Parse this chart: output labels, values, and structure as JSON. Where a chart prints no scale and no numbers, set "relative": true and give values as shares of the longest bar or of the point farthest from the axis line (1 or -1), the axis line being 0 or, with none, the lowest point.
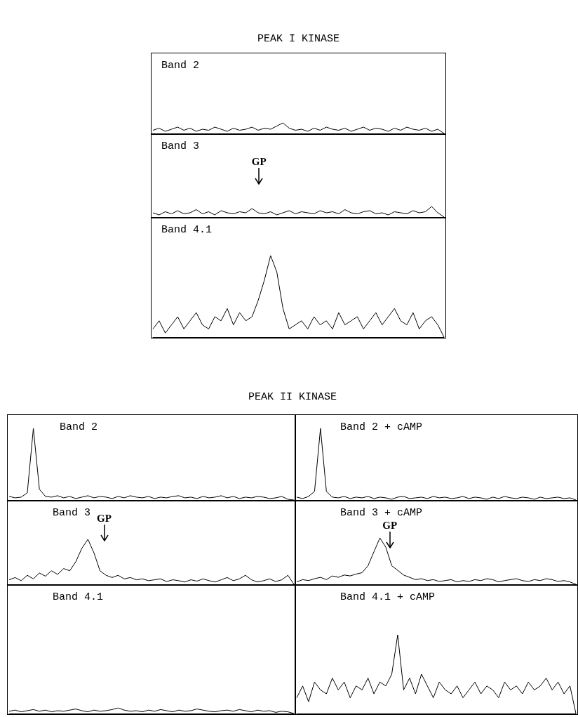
{
  "chart_data": [
    {
      "type": "other",
      "title": "PEAK I KINASE"
    },
    {
      "type": "line",
      "title": "Band 2",
      "relative": true,
      "marker": "none",
      "color": "#000000",
      "categories": [
        null,
        null,
        null,
        null,
        null,
        null,
        null,
        null,
        null,
        null,
        null,
        null,
        null,
        null,
        null,
        null,
        null,
        null,
        null,
        null,
        null,
        null,
        null,
        null,
        null,
        null,
        null,
        null,
        null,
        null,
        null,
        null,
        null,
        null,
        null,
        null,
        null,
        null,
        null,
        null,
        null,
        null,
        null,
        null,
        null,
        null,
        null,
        null
      ],
      "values": [
        0.3,
        0.5,
        0.2,
        0.4,
        0.6,
        0.3,
        0.5,
        0.2,
        0.4,
        0.3,
        0.6,
        0.4,
        0.2,
        0.5,
        0.3,
        0.4,
        0.6,
        0.3,
        0.5,
        0.4,
        0.7,
        1,
        0.5,
        0.3,
        0.4,
        0.2,
        0.5,
        0.3,
        0.6,
        0.4,
        0.3,
        0.5,
        0.2,
        0.4,
        0.6,
        0.3,
        0.5,
        0.4,
        0.2,
        0.5,
        0.3,
        0.6,
        0.4,
        0.3,
        0.5,
        0.2,
        0.4,
        0
      ]
    },
    {
      "type": "line",
      "title": "Band 3",
      "annotations": [
        "GP"
      ],
      "relative": true,
      "marker": "none",
      "color": "#000000",
      "categories": [
        null,
        null,
        null,
        null,
        null,
        null,
        null,
        null,
        null,
        null,
        null,
        null,
        null,
        null,
        null,
        null,
        null,
        null,
        null,
        null,
        null,
        null,
        null,
        null,
        null,
        null,
        null,
        null,
        null,
        null,
        null,
        null,
        null,
        null,
        null,
        null,
        null,
        null,
        null,
        null,
        null,
        null,
        null,
        null,
        null,
        null,
        null,
        null
      ],
      "values": [
        0.4,
        0.2,
        0.5,
        0.3,
        0.6,
        0.3,
        0.4,
        0.7,
        0.3,
        0.5,
        0.2,
        0.6,
        0.4,
        0.3,
        0.5,
        0.4,
        0.8,
        0.4,
        0.3,
        0.5,
        0.2,
        0.4,
        0.6,
        0.3,
        0.5,
        0.4,
        0.3,
        0.6,
        0.4,
        0.5,
        0.3,
        0.7,
        0.4,
        0.3,
        0.5,
        0.6,
        0.3,
        0.4,
        0.2,
        0.5,
        0.4,
        0.3,
        0.6,
        0.4,
        0.5,
        1,
        0.4,
        0
      ]
    },
    {
      "type": "line",
      "title": "Band 4.1",
      "relative": true,
      "marker": "none",
      "color": "#000000",
      "categories": [
        null,
        null,
        null,
        null,
        null,
        null,
        null,
        null,
        null,
        null,
        null,
        null,
        null,
        null,
        null,
        null,
        null,
        null,
        null,
        null,
        null,
        null,
        null,
        null,
        null,
        null,
        null,
        null,
        null,
        null,
        null,
        null,
        null,
        null,
        null,
        null,
        null,
        null,
        null,
        null,
        null,
        null,
        null,
        null,
        null,
        null,
        null,
        null
      ],
      "values": [
        0.1,
        0.2,
        0.05,
        0.15,
        0.25,
        0.1,
        0.2,
        0.3,
        0.15,
        0.1,
        0.25,
        0.2,
        0.35,
        0.15,
        0.3,
        0.2,
        0.25,
        0.45,
        0.7,
        1,
        0.8,
        0.35,
        0.1,
        0.15,
        0.2,
        0.1,
        0.25,
        0.15,
        0.2,
        0.1,
        0.3,
        0.15,
        0.2,
        0.25,
        0.1,
        0.2,
        0.3,
        0.15,
        0.25,
        0.35,
        0.2,
        0.15,
        0.3,
        0.1,
        0.2,
        0.25,
        0.15,
        0
      ]
    },
    {
      "type": "other",
      "title": "PEAK II KINASE"
    },
    {
      "type": "line",
      "title": "Band 2",
      "relative": true,
      "marker": "none",
      "color": "#000000",
      "categories": [
        null,
        null,
        null,
        null,
        null,
        null,
        null,
        null,
        null,
        null,
        null,
        null,
        null,
        null,
        null,
        null,
        null,
        null,
        null,
        null,
        null,
        null,
        null,
        null,
        null,
        null,
        null,
        null,
        null,
        null,
        null,
        null,
        null,
        null,
        null,
        null,
        null,
        null,
        null,
        null,
        null,
        null,
        null,
        null,
        null,
        null,
        null,
        null
      ],
      "values": [
        0.05,
        0.03,
        0.04,
        0.1,
        1,
        0.15,
        0.05,
        0.04,
        0.06,
        0.03,
        0.05,
        0.02,
        0.04,
        0.06,
        0.03,
        0.05,
        0.04,
        0.02,
        0.05,
        0.03,
        0.06,
        0.04,
        0.03,
        0.05,
        0.02,
        0.04,
        0.03,
        0.05,
        0.06,
        0.03,
        0.04,
        0.02,
        0.05,
        0.03,
        0.04,
        0.06,
        0.03,
        0.05,
        0.02,
        0.04,
        0.03,
        0.05,
        0.04,
        0.02,
        0.03,
        0.05,
        0.01,
        0
      ]
    },
    {
      "type": "line",
      "title": "Band 2 + cAMP",
      "relative": true,
      "marker": "none",
      "color": "#000000",
      "categories": [
        null,
        null,
        null,
        null,
        null,
        null,
        null,
        null,
        null,
        null,
        null,
        null,
        null,
        null,
        null,
        null,
        null,
        null,
        null,
        null,
        null,
        null,
        null,
        null,
        null,
        null,
        null,
        null,
        null,
        null,
        null,
        null,
        null,
        null,
        null,
        null,
        null,
        null,
        null,
        null,
        null,
        null,
        null,
        null,
        null,
        null,
        null,
        null
      ],
      "values": [
        0.04,
        0.02,
        0.05,
        0.12,
        1,
        0.12,
        0.04,
        0.03,
        0.05,
        0.02,
        0.04,
        0.03,
        0.05,
        0.02,
        0.04,
        0.03,
        0.01,
        0.04,
        0.05,
        0.02,
        0.03,
        0.04,
        0.02,
        0.05,
        0.03,
        0.04,
        0.02,
        0.03,
        0.05,
        0.02,
        0.04,
        0.03,
        0.01,
        0.04,
        0.02,
        0.05,
        0.03,
        0.02,
        0.04,
        0.03,
        0.01,
        0.04,
        0.02,
        0.03,
        0.04,
        0.02,
        0.03,
        0
      ]
    },
    {
      "type": "line",
      "title": "Band 3",
      "annotations": [
        "GP"
      ],
      "relative": true,
      "marker": "none",
      "color": "#000000",
      "categories": [
        null,
        null,
        null,
        null,
        null,
        null,
        null,
        null,
        null,
        null,
        null,
        null,
        null,
        null,
        null,
        null,
        null,
        null,
        null,
        null,
        null,
        null,
        null,
        null,
        null,
        null,
        null,
        null,
        null,
        null,
        null,
        null,
        null,
        null,
        null,
        null,
        null,
        null,
        null,
        null,
        null,
        null,
        null,
        null,
        null,
        null,
        null,
        null
      ],
      "values": [
        0.1,
        0.15,
        0.08,
        0.2,
        0.12,
        0.25,
        0.18,
        0.3,
        0.22,
        0.35,
        0.3,
        0.5,
        0.8,
        1,
        0.7,
        0.3,
        0.2,
        0.15,
        0.2,
        0.12,
        0.15,
        0.1,
        0.12,
        0.08,
        0.1,
        0.12,
        0.06,
        0.1,
        0.08,
        0.05,
        0.1,
        0.07,
        0.12,
        0.08,
        0.05,
        0.1,
        0.15,
        0.08,
        0.12,
        0.2,
        0.1,
        0.05,
        0.08,
        0.12,
        0.06,
        0.1,
        0.2,
        0
      ]
    },
    {
      "type": "line",
      "title": "Band 3 + cAMP",
      "annotations": [
        "GP"
      ],
      "relative": true,
      "marker": "none",
      "color": "#000000",
      "categories": [
        null,
        null,
        null,
        null,
        null,
        null,
        null,
        null,
        null,
        null,
        null,
        null,
        null,
        null,
        null,
        null,
        null,
        null,
        null,
        null,
        null,
        null,
        null,
        null,
        null,
        null,
        null,
        null,
        null,
        null,
        null,
        null,
        null,
        null,
        null,
        null,
        null,
        null,
        null,
        null,
        null,
        null,
        null,
        null,
        null,
        null,
        null,
        null
      ],
      "values": [
        0.05,
        0.1,
        0.08,
        0.12,
        0.15,
        0.1,
        0.18,
        0.15,
        0.2,
        0.18,
        0.22,
        0.25,
        0.4,
        0.7,
        1,
        0.8,
        0.4,
        0.3,
        0.2,
        0.15,
        0.1,
        0.12,
        0.08,
        0.1,
        0.06,
        0.08,
        0.1,
        0.05,
        0.08,
        0.06,
        0.1,
        0.08,
        0.12,
        0.1,
        0.05,
        0.08,
        0.1,
        0.12,
        0.08,
        0.06,
        0.1,
        0.08,
        0.12,
        0.1,
        0.06,
        0.08,
        0.05,
        0
      ]
    },
    {
      "type": "line",
      "title": "Band 4.1",
      "relative": true,
      "marker": "none",
      "color": "#000000",
      "categories": [
        null,
        null,
        null,
        null,
        null,
        null,
        null,
        null,
        null,
        null,
        null,
        null,
        null,
        null,
        null,
        null,
        null,
        null,
        null,
        null,
        null,
        null,
        null,
        null,
        null,
        null,
        null,
        null,
        null,
        null,
        null,
        null,
        null,
        null,
        null,
        null,
        null,
        null,
        null,
        null,
        null,
        null,
        null,
        null,
        null,
        null,
        null,
        null
      ],
      "values": [
        0.4,
        0.6,
        0.3,
        0.5,
        0.7,
        0.4,
        0.6,
        0.3,
        0.5,
        0.4,
        0.6,
        0.8,
        0.5,
        0.3,
        0.6,
        0.4,
        0.5,
        0.7,
        1,
        0.6,
        0.4,
        0.5,
        0.3,
        0.6,
        0.4,
        0.7,
        0.5,
        0.3,
        0.6,
        0.4,
        0.5,
        0.8,
        0.6,
        0.4,
        0.3,
        0.5,
        0.6,
        0.4,
        0.7,
        0.5,
        0.3,
        0.6,
        0.4,
        0.5,
        0.2,
        0.4,
        0.3,
        0
      ]
    },
    {
      "type": "line",
      "title": "Band 4.1 + cAMP",
      "relative": true,
      "marker": "none",
      "color": "#000000",
      "categories": [
        null,
        null,
        null,
        null,
        null,
        null,
        null,
        null,
        null,
        null,
        null,
        null,
        null,
        null,
        null,
        null,
        null,
        null,
        null,
        null,
        null,
        null,
        null,
        null,
        null,
        null,
        null,
        null,
        null,
        null,
        null,
        null,
        null,
        null,
        null,
        null,
        null,
        null,
        null,
        null,
        null,
        null,
        null,
        null,
        null,
        null,
        null,
        null
      ],
      "values": [
        0.2,
        0.35,
        0.15,
        0.4,
        0.3,
        0.25,
        0.45,
        0.3,
        0.4,
        0.2,
        0.35,
        0.3,
        0.45,
        0.25,
        0.4,
        0.35,
        0.5,
        1,
        0.3,
        0.45,
        0.25,
        0.5,
        0.35,
        0.2,
        0.4,
        0.3,
        0.25,
        0.35,
        0.2,
        0.3,
        0.4,
        0.25,
        0.35,
        0.3,
        0.2,
        0.4,
        0.3,
        0.35,
        0.25,
        0.4,
        0.3,
        0.35,
        0.45,
        0.3,
        0.4,
        0.25,
        0.35,
        0
      ]
    }
  ]
}
